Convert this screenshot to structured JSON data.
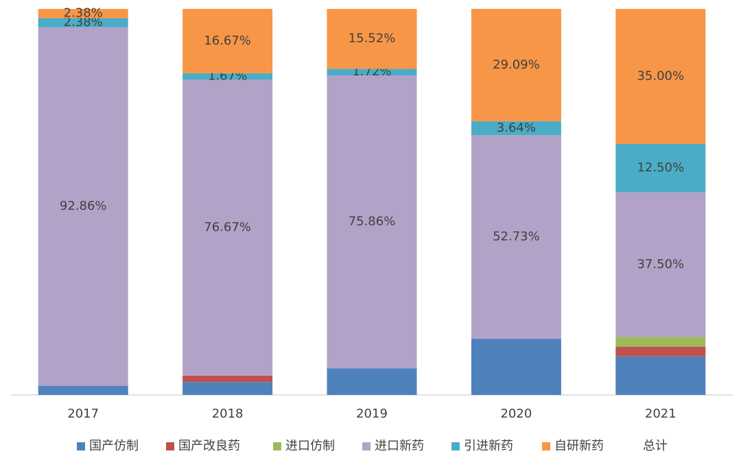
{
  "chart_data": {
    "type": "stacked_bar_100",
    "categories": [
      "2017",
      "2018",
      "2019",
      "2020",
      "2021"
    ],
    "ylim": [
      0,
      100
    ],
    "series": [
      {
        "name": "国产仿制",
        "color": "#4f81bd",
        "values": [
          2.38,
          3.33,
          6.9,
          14.55,
          10
        ]
      },
      {
        "name": "国产改良药",
        "color": "#c0504d",
        "values": [
          0,
          1.67,
          0,
          0,
          2.5
        ]
      },
      {
        "name": "进口仿制",
        "color": "#9bbb59",
        "values": [
          0,
          0,
          0,
          0,
          2.5
        ]
      },
      {
        "name": "进口新药",
        "color": "#b3a2c7",
        "values": [
          92.86,
          76.67,
          75.86,
          52.73,
          37.5
        ],
        "value_labels": [
          "92.86%",
          "76.67%",
          "75.86%",
          "52.73%",
          "37.50%"
        ]
      },
      {
        "name": "引进新药",
        "color": "#4bacc6",
        "values": [
          2.38,
          1.67,
          1.72,
          3.64,
          12.5
        ],
        "value_labels": [
          "2.38%",
          "1.67%",
          "1.72%",
          "3.64%",
          "12.50%"
        ]
      },
      {
        "name": "自研新药",
        "color": "#f79646",
        "values": [
          2.38,
          16.67,
          15.52,
          29.09,
          35
        ],
        "value_labels": [
          "2.38%",
          "16.67%",
          "15.52%",
          "29.09%",
          "35.00%"
        ]
      }
    ],
    "extra_legend_entry": "总计"
  }
}
